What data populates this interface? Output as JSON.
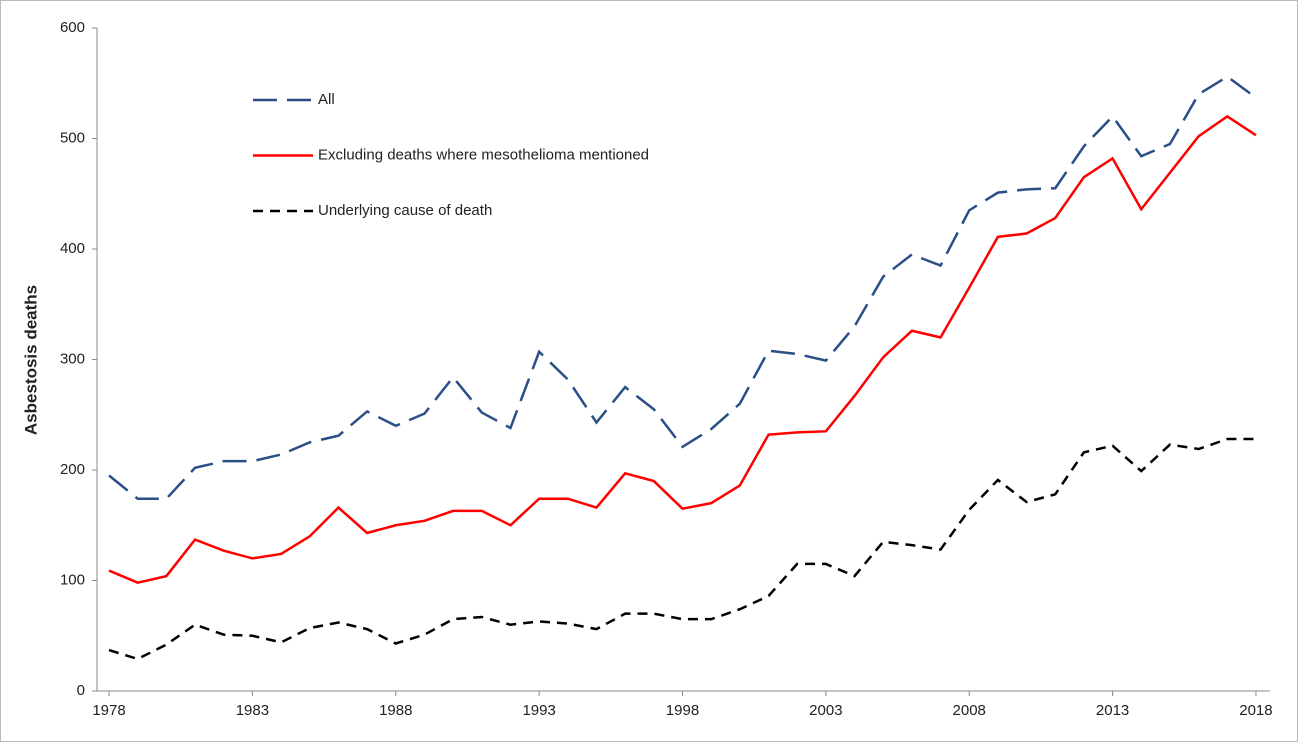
{
  "chart_data": {
    "type": "line",
    "y_label": "Asbestosis deaths",
    "x": [
      1978,
      1979,
      1980,
      1981,
      1982,
      1983,
      1984,
      1985,
      1986,
      1987,
      1988,
      1989,
      1990,
      1991,
      1992,
      1993,
      1994,
      1995,
      1996,
      1997,
      1998,
      1999,
      2000,
      2001,
      2002,
      2003,
      2004,
      2005,
      2006,
      2007,
      2008,
      2009,
      2010,
      2011,
      2012,
      2013,
      2014,
      2015,
      2016,
      2017,
      2018
    ],
    "series": [
      {
        "name": "All",
        "color": "#2a4f86",
        "dash": "dashed-long",
        "values": [
          195,
          174,
          174,
          202,
          208,
          208,
          214,
          225,
          231,
          253,
          240,
          251,
          284,
          252,
          238,
          307,
          282,
          243,
          275,
          255,
          221,
          237,
          260,
          308,
          305,
          299,
          330,
          375,
          395,
          385,
          435,
          451,
          454,
          455,
          493,
          520,
          484,
          495,
          540,
          556,
          537
        ]
      },
      {
        "name": "Excluding deaths where mesothelioma mentioned",
        "color": "#ff0000",
        "dash": "solid",
        "values": [
          109,
          98,
          104,
          137,
          127,
          120,
          124,
          140,
          166,
          143,
          150,
          154,
          163,
          163,
          150,
          174,
          174,
          166,
          197,
          190,
          165,
          170,
          186,
          232,
          234,
          235,
          267,
          302,
          326,
          320,
          365,
          411,
          414,
          428,
          465,
          482,
          436,
          469,
          502,
          520,
          503
        ]
      },
      {
        "name": "Underlying cause of death",
        "color": "#000000",
        "dash": "dashed-short",
        "values": [
          37,
          29,
          42,
          60,
          51,
          50,
          44,
          57,
          62,
          56,
          43,
          51,
          65,
          67,
          60,
          63,
          61,
          56,
          70,
          70,
          65,
          65,
          74,
          86,
          115,
          115,
          104,
          135,
          132,
          128,
          164,
          191,
          171,
          178,
          216,
          222,
          199,
          223,
          219,
          228,
          228
        ]
      }
    ],
    "xlim": [
      1977.58,
      2018.49
    ],
    "xticks": [
      1978,
      1983,
      1988,
      1993,
      1998,
      2003,
      2008,
      2013,
      2018
    ],
    "ylim": [
      0,
      600
    ],
    "yticks": [
      0,
      100,
      200,
      300,
      400,
      500,
      600
    ],
    "legend": "upper left"
  }
}
